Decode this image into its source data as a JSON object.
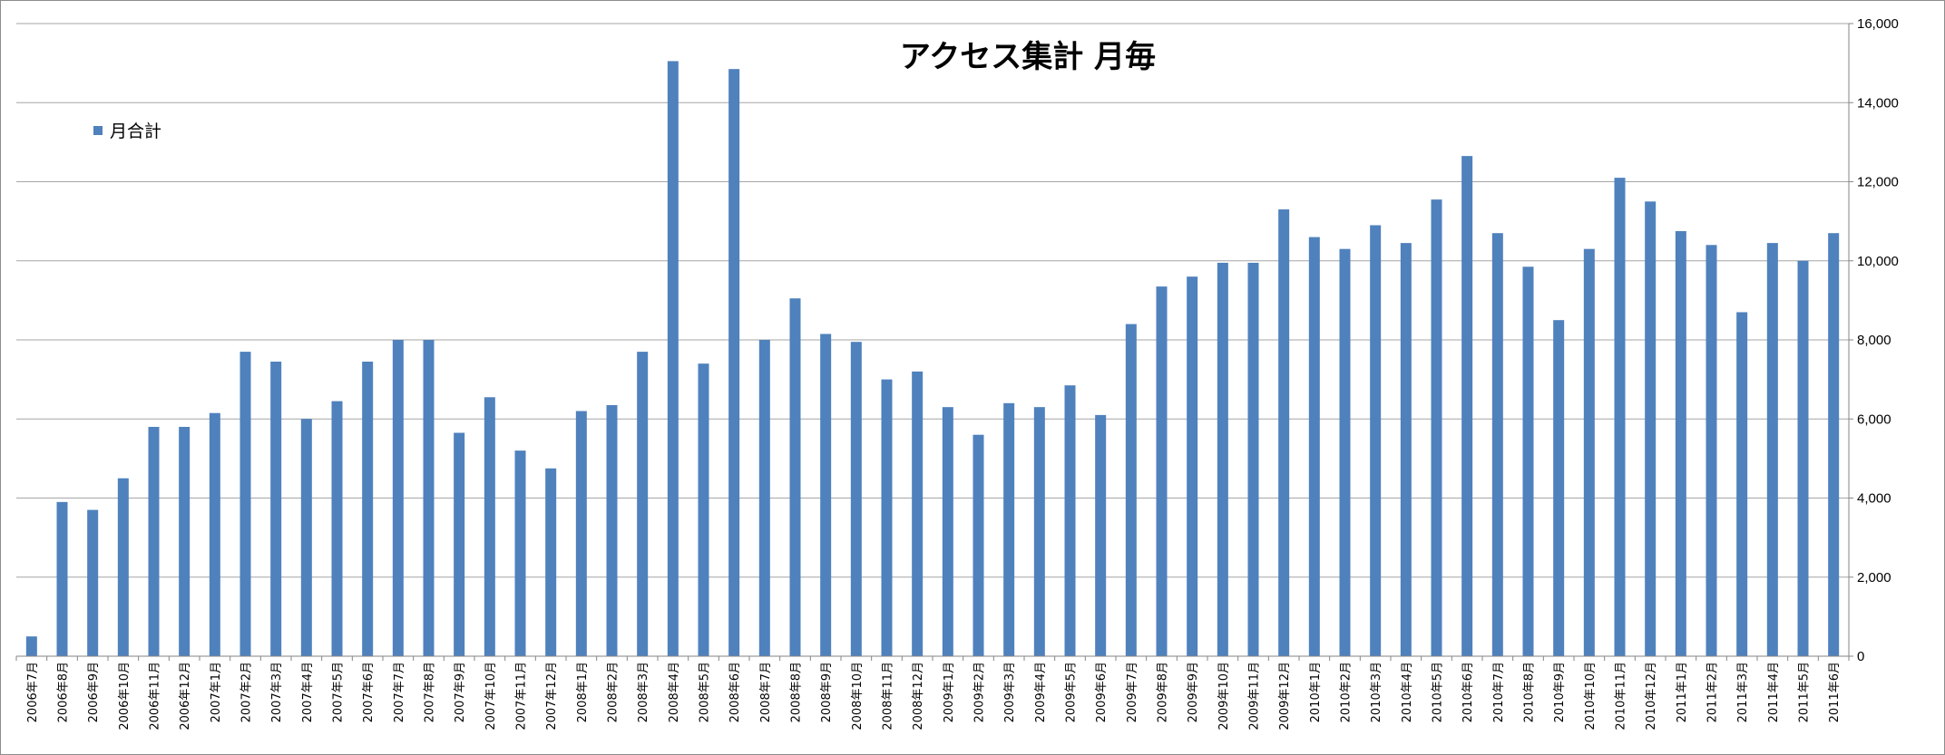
{
  "chart_data": {
    "type": "bar",
    "title": "アクセス集計 月毎",
    "legend_position": "top-left",
    "grid": true,
    "y_axis_side": "right",
    "ylim": [
      0,
      16000
    ],
    "yticks": [
      "0",
      "2,000",
      "4,000",
      "6,000",
      "8,000",
      "10,000",
      "12,000",
      "14,000",
      "16,000"
    ],
    "colors": {
      "bar": "#4f81bd",
      "grid": "#a6a6a6",
      "axis": "#868686"
    },
    "categories": [
      "2006年7月",
      "2006年8月",
      "2006年9月",
      "2006年10月",
      "2006年11月",
      "2006年12月",
      "2007年1月",
      "2007年2月",
      "2007年3月",
      "2007年4月",
      "2007年5月",
      "2007年6月",
      "2007年7月",
      "2007年8月",
      "2007年9月",
      "2007年10月",
      "2007年11月",
      "2007年12月",
      "2008年1月",
      "2008年2月",
      "2008年3月",
      "2008年4月",
      "2008年5月",
      "2008年6月",
      "2008年7月",
      "2008年8月",
      "2008年9月",
      "2008年10月",
      "2008年11月",
      "2008年12月",
      "2009年1月",
      "2009年2月",
      "2009年3月",
      "2009年4月",
      "2009年5月",
      "2009年6月",
      "2009年7月",
      "2009年8月",
      "2009年9月",
      "2009年10月",
      "2009年11月",
      "2009年12月",
      "2010年1月",
      "2010年2月",
      "2010年3月",
      "2010年4月",
      "2010年5月",
      "2010年6月",
      "2010年7月",
      "2010年8月",
      "2010年9月",
      "2010年10月",
      "2010年11月",
      "2010年12月",
      "2011年1月",
      "2011年2月",
      "2011年3月",
      "2011年4月",
      "2011年5月",
      "2011年6月"
    ],
    "series": [
      {
        "name": "月合計",
        "values": [
          500,
          3900,
          3700,
          4500,
          5800,
          5800,
          6150,
          7700,
          7450,
          6000,
          6450,
          7450,
          8000,
          8000,
          5650,
          6550,
          5200,
          4750,
          6200,
          6350,
          7700,
          15050,
          7400,
          14850,
          8000,
          9050,
          8150,
          7950,
          7000,
          7200,
          6300,
          5600,
          6400,
          6300,
          6850,
          6100,
          8400,
          9350,
          9600,
          9950,
          9950,
          11300,
          10600,
          10300,
          10900,
          10450,
          11550,
          12650,
          10700,
          9850,
          8500,
          10300,
          12100,
          11500,
          10750,
          10400,
          8700,
          10450,
          10000,
          10700
        ]
      }
    ]
  }
}
